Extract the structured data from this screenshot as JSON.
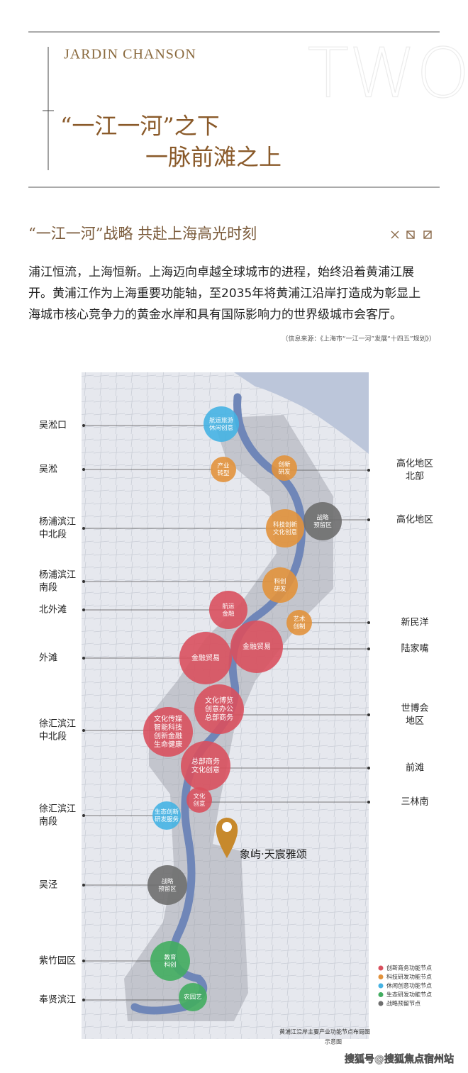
{
  "header": {
    "brand": "JARDIN CHANSON",
    "chapter": "TWO",
    "title_lines": [
      "“一江一河”之下",
      "一脉前滩之上"
    ]
  },
  "section": {
    "title": "“一江一河”战略  共赴上海高光时刻",
    "paragraph_lines": [
      "浦江恒流，上海恒新。上海迈向卓越全球城市的进程，始终沿着黄浦江展",
      "开。黄浦江作为上海重要功能轴，至2035年将黄浦江沿岸打造成为彰显上",
      "海城市核心竞争力的黄金水岸和具有国际影响力的世界级城市会客厅。"
    ],
    "source": "（信息来源：《上海市“一江一河”发展“十四五”规划》）"
  },
  "map": {
    "left_labels": [
      [
        "吴淞口"
      ],
      [
        "吴淞"
      ],
      [
        "杨浦滨江",
        "中北段"
      ],
      [
        "杨浦滨江",
        "南段"
      ],
      [
        "北外滩"
      ],
      [
        "外滩"
      ],
      [
        "徐汇滨江",
        "中北段"
      ],
      [
        "徐汇滨江",
        "南段"
      ],
      [
        "吴泾"
      ],
      [
        "紫竹园区"
      ],
      [
        "奉贤滨江"
      ]
    ],
    "right_labels": [
      [
        "高化地区",
        "北部"
      ],
      [
        "高化地区"
      ],
      [
        "新民洋"
      ],
      [
        "陆家嘴"
      ],
      [
        "世博会",
        "地区"
      ],
      [
        "前滩"
      ],
      [
        "三林南"
      ]
    ],
    "nodes": [
      {
        "lines": [
          "航运旅游",
          "休闲创意"
        ],
        "color": "#45b2e3"
      },
      {
        "lines": [
          "产业",
          "转型"
        ],
        "color": "#e2923c"
      },
      {
        "lines": [
          "创新",
          "研发"
        ],
        "color": "#e2923c"
      },
      {
        "lines": [
          "战略",
          "预留区"
        ],
        "color": "#6e6e6e"
      },
      {
        "lines": [
          "科技创新",
          "文化创意"
        ],
        "color": "#e2923c"
      },
      {
        "lines": [
          "科创",
          "研发"
        ],
        "color": "#e2923c"
      },
      {
        "lines": [
          "航运",
          "金融"
        ],
        "color": "#d9505e"
      },
      {
        "lines": [
          "艺术",
          "创制"
        ],
        "color": "#e2923c"
      },
      {
        "lines": [
          "金融贸易"
        ],
        "color": "#d9505e"
      },
      {
        "lines": [
          "金融贸易"
        ],
        "color": "#d9505e"
      },
      {
        "lines": [
          "文化博览",
          "创意办公",
          "总部商务"
        ],
        "color": "#d9505e"
      },
      {
        "lines": [
          "文化传媒",
          "智能科技",
          "创新金融",
          "生命健康"
        ],
        "color": "#d9505e"
      },
      {
        "lines": [
          "总部商务",
          "文化创意"
        ],
        "color": "#d9505e"
      },
      {
        "lines": [
          "文化",
          "创意"
        ],
        "color": "#d9505e"
      },
      {
        "lines": [
          "生态创新",
          "研发服务"
        ],
        "color": "#45b2e3"
      },
      {
        "lines": [
          "战略",
          "预留区"
        ],
        "color": "#6e6e6e"
      },
      {
        "lines": [
          "教育",
          "科创"
        ],
        "color": "#43ad61"
      },
      {
        "lines": [
          "农园艺"
        ],
        "color": "#43ad61"
      }
    ],
    "project": "象屿·天宸雅颂",
    "legend": [
      {
        "label": "创新商务功能节点",
        "color": "#d9505e"
      },
      {
        "label": "科技研发功能节点",
        "color": "#e2923c"
      },
      {
        "label": "休闲创意功能节点",
        "color": "#45b2e3"
      },
      {
        "label": "生态研发功能节点",
        "color": "#43ad61"
      },
      {
        "label": "战略预留节点",
        "color": "#6e6e6e"
      }
    ],
    "caption_lines": [
      "黄浦江沿岸主要产业功能节点布局图",
      "示意图"
    ]
  },
  "watermark": "搜狐号@搜狐焦点宿州站"
}
